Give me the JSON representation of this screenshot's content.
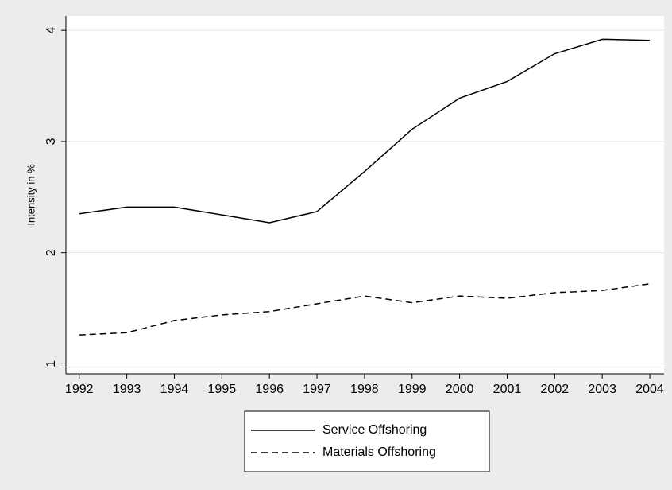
{
  "chart_data": {
    "type": "line",
    "y_label": "Intensity in %",
    "x": [
      1992,
      1993,
      1994,
      1995,
      1996,
      1997,
      1998,
      1999,
      2000,
      2001,
      2002,
      2003,
      2004
    ],
    "series": [
      {
        "name": "Service Offshoring",
        "color": "#000000",
        "style": "solid",
        "values": [
          2.35,
          2.41,
          2.41,
          2.34,
          2.27,
          2.37,
          2.73,
          3.11,
          3.39,
          3.54,
          3.79,
          3.92,
          3.91
        ]
      },
      {
        "name": "Materials Offshoring",
        "color": "#000000",
        "style": "dashed",
        "values": [
          1.26,
          1.28,
          1.39,
          1.44,
          1.47,
          1.54,
          1.61,
          1.55,
          1.61,
          1.59,
          1.64,
          1.66,
          1.72
        ]
      }
    ],
    "xlim": [
      1991.72,
      2004.3
    ],
    "xticks": [
      1992,
      1993,
      1994,
      1995,
      1996,
      1997,
      1998,
      1999,
      2000,
      2001,
      2002,
      2003,
      2004
    ],
    "ylim": [
      0.91,
      4.13
    ],
    "yticks": [
      1,
      2,
      3,
      4
    ],
    "grid": true,
    "legend": "bottom"
  }
}
